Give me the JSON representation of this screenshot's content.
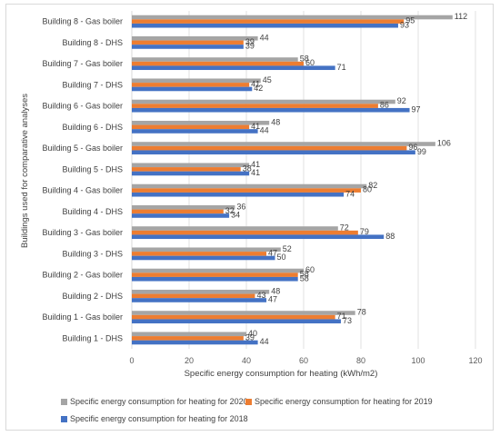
{
  "chart_data": {
    "type": "bar",
    "orientation": "horizontal",
    "categories": [
      "Building 1 - DHS",
      "Building 1 - Gas boiler",
      "Building 2 - DHS",
      "Building 2 - Gas boiler",
      "Building 3 - DHS",
      "Building 3 - Gas boiler",
      "Building 4 - DHS",
      "Building 4 - Gas boiler",
      "Building 5 - DHS",
      "Building 5 - Gas boiler",
      "Building 6 - DHS",
      "Building 6 - Gas boiler",
      "Building 7 - DHS",
      "Building 7 - Gas boiler",
      "Building 8 - DHS",
      "Building 8 - Gas boiler"
    ],
    "series": [
      {
        "name": "Specific energy consumption for heating for 2020",
        "color": "#a5a5a5",
        "values": [
          40,
          78,
          48,
          60,
          52,
          72,
          36,
          82,
          41,
          106,
          48,
          92,
          45,
          58,
          44,
          112
        ]
      },
      {
        "name": "Specific energy consumption for heating for 2019",
        "color": "#ed7d31",
        "values": [
          39,
          71,
          43,
          58,
          47,
          79,
          32,
          80,
          38,
          96,
          41,
          86,
          41,
          60,
          39,
          95
        ]
      },
      {
        "name": "Specific energy consumption for heating for 2018",
        "color": "#4472c4",
        "values": [
          44,
          73,
          47,
          58,
          50,
          88,
          34,
          74,
          41,
          99,
          44,
          97,
          42,
          71,
          39,
          93
        ]
      }
    ],
    "xlabel": "Specific energy consumption for heating (kWh/m2)",
    "ylabel": "Buildings used for comparative analyses",
    "xlim": [
      0,
      120
    ],
    "xticks": [
      0,
      20,
      40,
      60,
      80,
      100,
      120
    ],
    "grid": true,
    "legend_position": "bottom"
  }
}
